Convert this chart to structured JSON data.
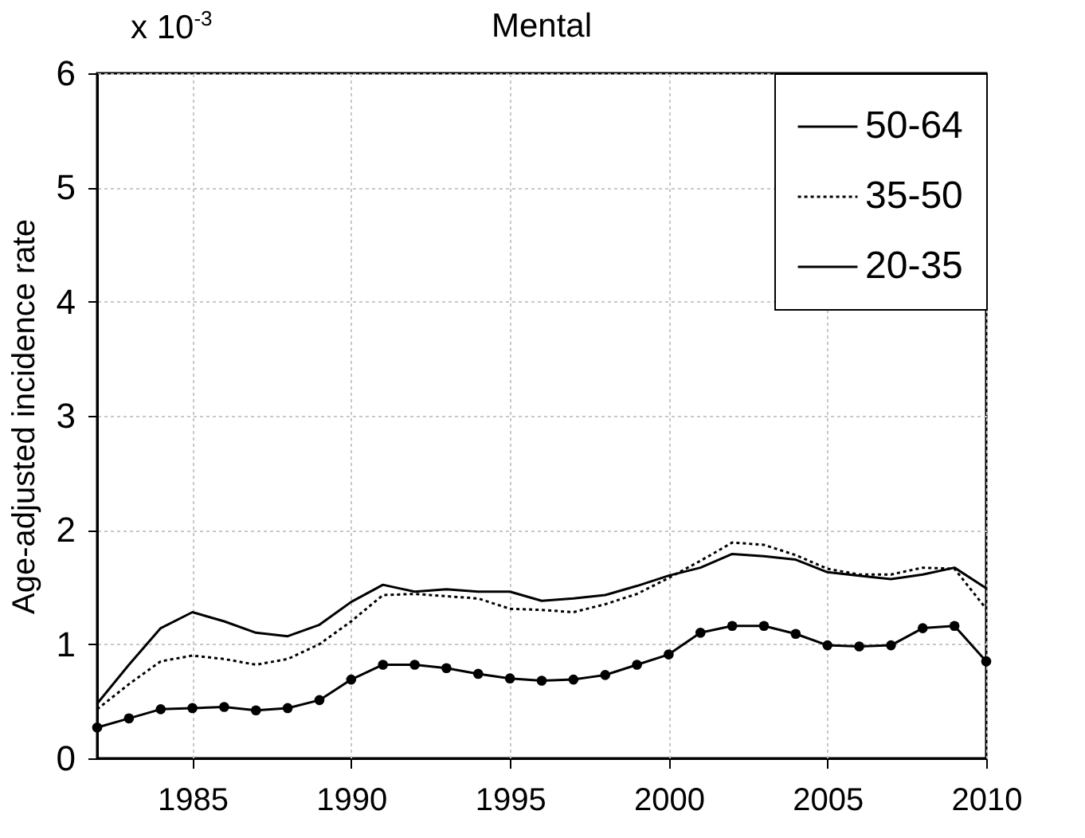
{
  "chart_data": {
    "type": "line",
    "title": "Mental",
    "ylabel": "Age-adjusted incidence rate",
    "annotations": [
      "x 10$^{-3}$"
    ],
    "x": [
      1982,
      1983,
      1984,
      1985,
      1986,
      1987,
      1988,
      1989,
      1990,
      1991,
      1992,
      1993,
      1994,
      1995,
      1996,
      1997,
      1998,
      1999,
      2000,
      2001,
      2002,
      2003,
      2004,
      2005,
      2006,
      2007,
      2008,
      2009,
      2010
    ],
    "series": [
      {
        "name": "50-64",
        "color": "#000000",
        "line_style": "solid",
        "marker": "none",
        "values": [
          0.48,
          0.82,
          1.14,
          1.28,
          1.2,
          1.1,
          1.07,
          1.17,
          1.37,
          1.52,
          1.46,
          1.48,
          1.46,
          1.46,
          1.38,
          1.4,
          1.43,
          1.51,
          1.6,
          1.67,
          1.79,
          1.77,
          1.74,
          1.63,
          1.6,
          1.57,
          1.61,
          1.67,
          1.49
        ]
      },
      {
        "name": "35-50",
        "color": "#000000",
        "line_style": "dotted",
        "marker": "none",
        "values": [
          0.43,
          0.65,
          0.85,
          0.9,
          0.87,
          0.82,
          0.87,
          1.0,
          1.2,
          1.43,
          1.44,
          1.42,
          1.4,
          1.31,
          1.3,
          1.28,
          1.35,
          1.44,
          1.58,
          1.73,
          1.89,
          1.87,
          1.78,
          1.66,
          1.61,
          1.61,
          1.67,
          1.66,
          1.31
        ]
      },
      {
        "name": "20-35",
        "color": "#000000",
        "line_style": "solid",
        "marker": "circle",
        "values": [
          0.27,
          0.35,
          0.43,
          0.44,
          0.45,
          0.42,
          0.44,
          0.51,
          0.69,
          0.82,
          0.82,
          0.79,
          0.74,
          0.7,
          0.68,
          0.69,
          0.73,
          0.82,
          0.91,
          1.1,
          1.16,
          1.16,
          1.09,
          0.99,
          0.98,
          0.99,
          1.14,
          1.16,
          0.85
        ]
      }
    ],
    "xlim": [
      1982,
      2010
    ],
    "xticks": [
      1985,
      1990,
      1995,
      2000,
      2005,
      2010
    ],
    "ylim": [
      0,
      6
    ],
    "yticks": [
      0,
      1,
      2,
      3,
      4,
      5,
      6
    ],
    "grid": true,
    "legend": "top right"
  }
}
